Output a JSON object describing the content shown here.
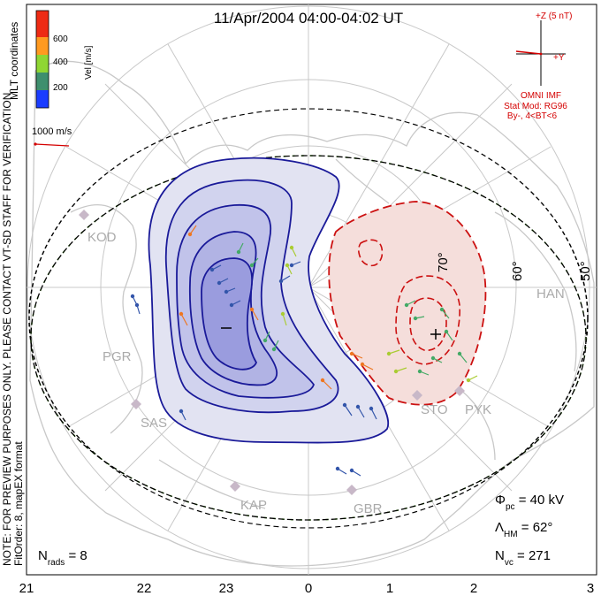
{
  "title": "11/Apr/2004 04:00-04:02 UT",
  "coordinates": "MLT coordinates",
  "note": "NOTE: FOR PREVIEW PURPOSES ONLY. PLEASE CONTACT VT-SD STAFF FOR VERIFICATION.",
  "fit_info": "FitOrder: 8, mapEX format",
  "legend": {
    "title": "Vel [m/s]",
    "ticks": [
      "600",
      "400",
      "200"
    ],
    "colors": [
      "#1a3cff",
      "#3e8f6e",
      "#8fd633",
      "#ff9a20",
      "#ee2b14"
    ]
  },
  "reference_vector": {
    "label": "1000 m/s"
  },
  "imf": {
    "z_label": "+Z (5 nT)",
    "y_label": "+Y",
    "source": "OMNI IMF",
    "model": "Stat Mod: RG96",
    "bin": "By-, 4<BT<6"
  },
  "stations": [
    "KOD",
    "PGR",
    "SAS",
    "KAP",
    "GBR",
    "STO",
    "PYK",
    "HAN"
  ],
  "lat_labels": [
    "60°",
    "50°",
    "70°"
  ],
  "stats": {
    "phi_symbol": "Φ",
    "phi_sub": "pc",
    "phi_value": " = 40 kV",
    "lambda_symbol": "Λ",
    "lambda_sub": "HM",
    "lambda_value": " = 62°",
    "nvc_symbol": "N",
    "nvc_sub": "vc",
    "nvc_value": " = 271",
    "nrads_symbol": "N",
    "nrads_sub": "rads",
    "nrads_value": " = 8"
  },
  "mlt_ticks": [
    "21",
    "22",
    "23",
    "0",
    "1",
    "2",
    "3"
  ]
}
